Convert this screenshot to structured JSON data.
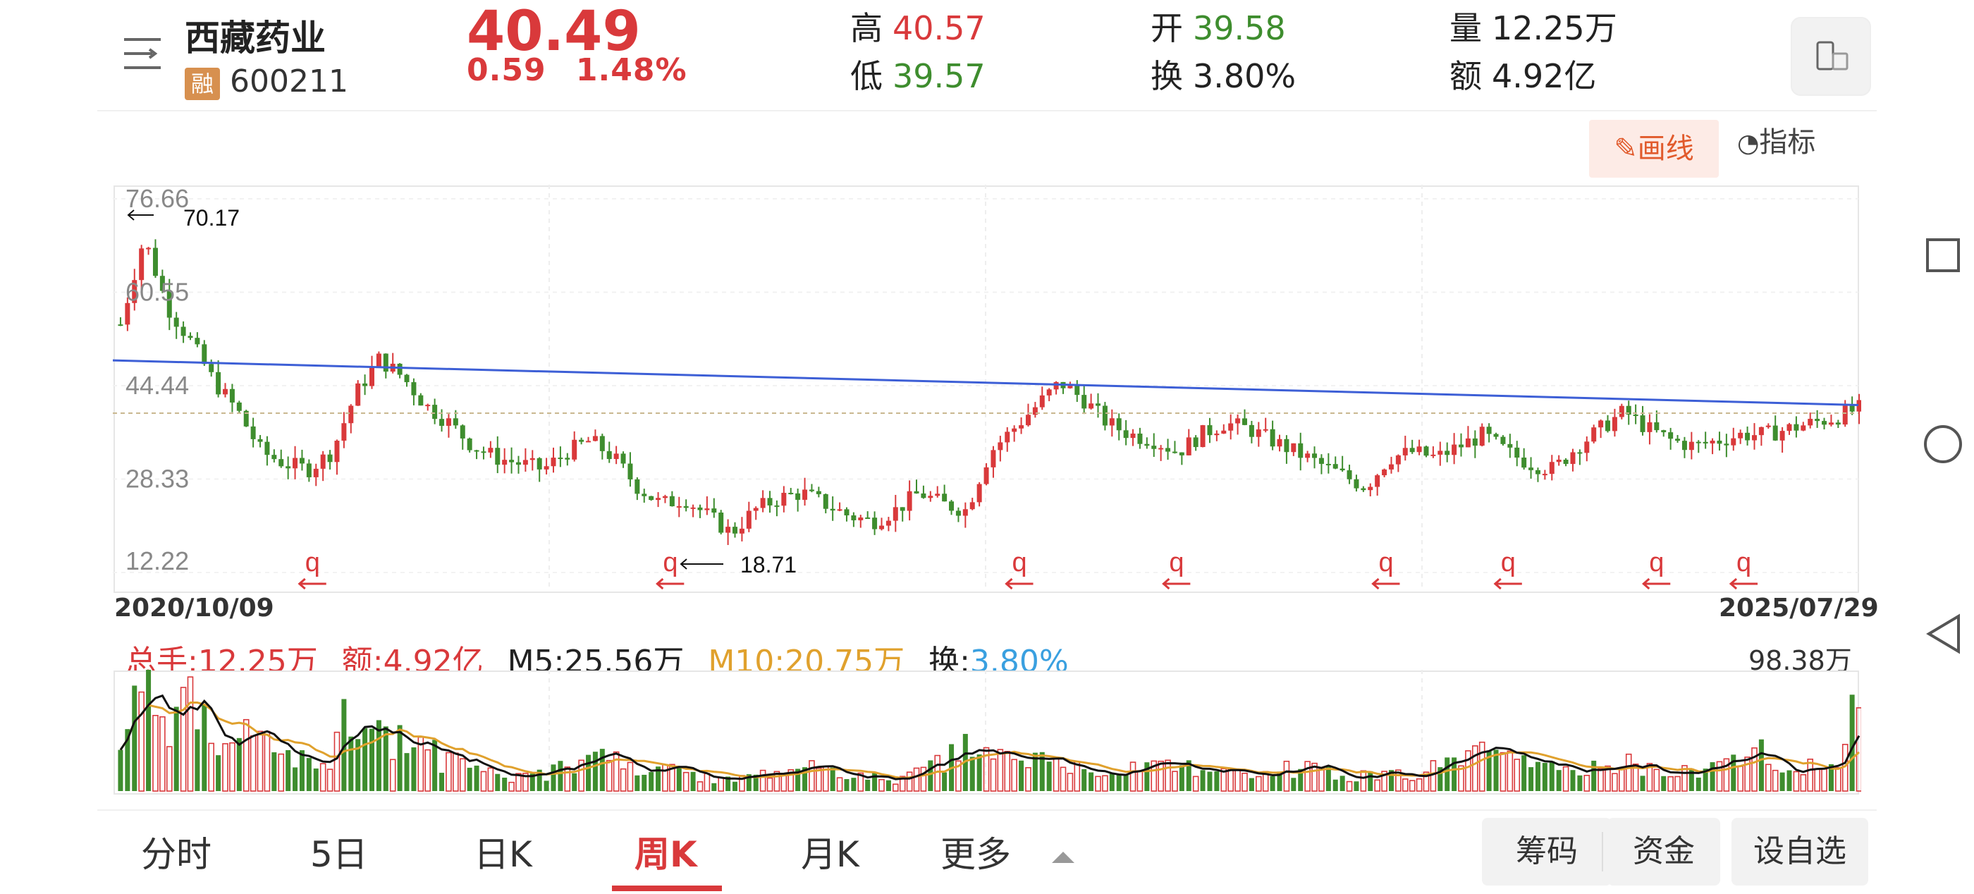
{
  "header": {
    "menu_icon": "menu-list-icon",
    "stock_name": "西藏药业",
    "badge": "融",
    "stock_code": "600211",
    "price": "40.49",
    "change": "0.59",
    "change_pct": "1.48%",
    "stats": [
      {
        "label": "高",
        "value": "40.57",
        "color": "#d9393b"
      },
      {
        "label": "低",
        "value": "39.57",
        "color": "#3e8d2e"
      },
      {
        "label": "开",
        "value": "39.58",
        "color": "#3e8d2e"
      },
      {
        "label": "换",
        "value": "3.80%",
        "color": "#222222"
      },
      {
        "label": "量",
        "value": "12.25万",
        "color": "#222222"
      },
      {
        "label": "额",
        "value": "4.92亿",
        "color": "#222222"
      }
    ],
    "landscape_icon": "phone-rotate-icon"
  },
  "toolbar": {
    "draw_label": "画线",
    "draw_icon": "pencil-icon",
    "indicator_label": "指标",
    "indicator_icon": "gauge-icon"
  },
  "chart": {
    "start_date": "2020/10/09",
    "end_date": "2025/07/29",
    "high_marker": "70.17",
    "low_marker": "18.71",
    "q_marker": "q"
  },
  "volume": {
    "total_label": "总手:12.25万",
    "amount_label": "额:4.92亿",
    "m5_label": "M5:25.56万",
    "m10_label": "M10:20.75万",
    "turnover_prefix": "换:",
    "turnover_value": "3.80%",
    "max_label": "98.38万"
  },
  "tabs": [
    {
      "label": "分时"
    },
    {
      "label": "5日"
    },
    {
      "label": "日K"
    },
    {
      "label": "周K",
      "active": true
    },
    {
      "label": "月K"
    },
    {
      "label": "更多"
    }
  ],
  "actions": {
    "chips": "筹码",
    "funds": "资金",
    "add_watch": "设自选"
  },
  "nav": {
    "recents": "square-icon",
    "home": "circle-icon",
    "back": "triangle-back-icon"
  },
  "colors": {
    "up": "#d9393b",
    "down": "#3e8d2e",
    "trendline": "#3d5fd6",
    "m5": "#111111",
    "m10": "#e0a12d",
    "turnover": "#3aa0e0"
  },
  "chart_data": [
    {
      "type": "candlestick",
      "title": "",
      "xlabel": "",
      "ylabel": "",
      "ylim": [
        12.22,
        76.66
      ],
      "y_ticks": [
        "76.66",
        "60.55",
        "44.44",
        "28.33",
        "12.22"
      ],
      "x_start": "2020/10/09",
      "x_end": "2025/07/29",
      "annotations": [
        {
          "label": "70.17",
          "type": "max"
        },
        {
          "label": "18.71",
          "type": "min"
        }
      ],
      "trendline": {
        "from": 48.8,
        "to": 41.1
      },
      "close_path": [
        55,
        70,
        58,
        52,
        45,
        40,
        33,
        31,
        30,
        33,
        43,
        49,
        46,
        41,
        38,
        34,
        32,
        31,
        30,
        33,
        35,
        32,
        27,
        24,
        25,
        22,
        19,
        23,
        25,
        26,
        24,
        22,
        21,
        23,
        26,
        24,
        23,
        33,
        37,
        41,
        45,
        42,
        38,
        36,
        35,
        33,
        36,
        38,
        37,
        35,
        33,
        31,
        29,
        27,
        32,
        33,
        32,
        34,
        36,
        33,
        31,
        30,
        34,
        37,
        40,
        37,
        35,
        34,
        35,
        36,
        36,
        37,
        38,
        39,
        40.49
      ],
      "markers_q": 8
    },
    {
      "type": "bar",
      "title": "",
      "ylabel": "",
      "ymax_label": "98.38万",
      "series": [
        {
          "name": "M5",
          "value": "25.56万"
        },
        {
          "name": "M10",
          "value": "20.75万"
        }
      ],
      "volume_path": [
        60,
        90,
        45,
        70,
        55,
        50,
        40,
        30,
        25,
        35,
        80,
        55,
        45,
        35,
        25,
        20,
        15,
        12,
        15,
        20,
        30,
        25,
        20,
        18,
        15,
        12,
        10,
        12,
        15,
        20,
        18,
        15,
        12,
        10,
        15,
        25,
        35,
        30,
        28,
        25,
        20,
        18,
        15,
        20,
        25,
        22,
        18,
        15,
        12,
        15,
        20,
        18,
        15,
        12,
        14,
        16,
        20,
        25,
        30,
        28,
        22,
        18,
        15,
        20,
        25,
        22,
        18,
        15,
        20,
        30,
        35,
        25,
        20,
        22,
        100
      ]
    }
  ]
}
